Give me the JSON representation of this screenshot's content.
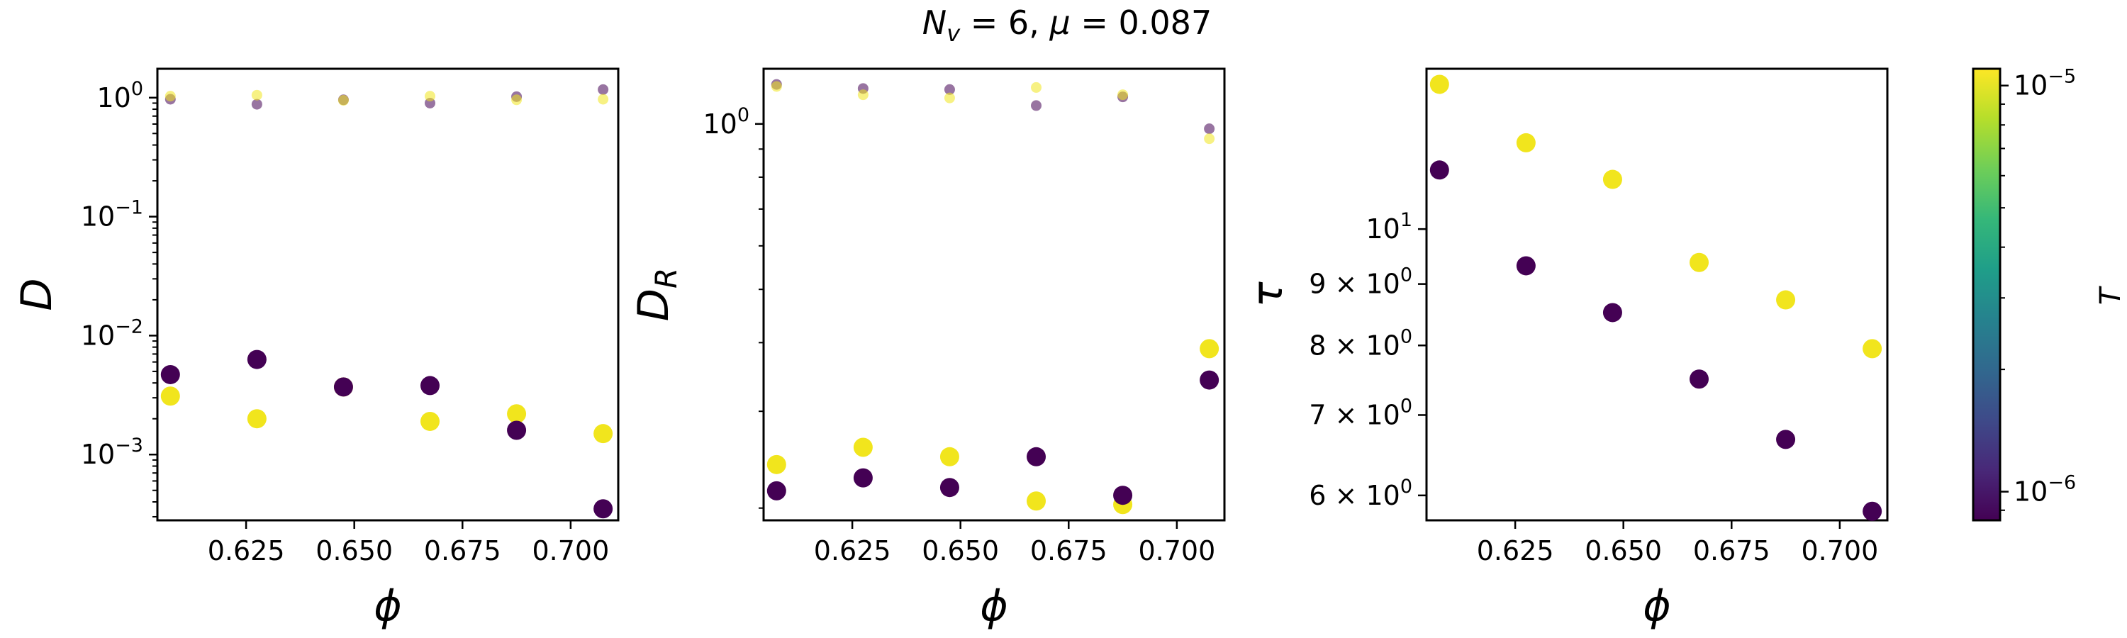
{
  "suptitle": "N_v = 6, μ = 0.087",
  "suptitle_parts": {
    "n": "N",
    "nsub": "v",
    "nval": " = 6, ",
    "mu": "μ",
    "muval": " = 0.087"
  },
  "colorbar": {
    "label": "T",
    "scale": "log",
    "range": [
      8.5e-07,
      1.1e-05
    ],
    "ticks": [
      {
        "value": 1e-06,
        "base": "10",
        "exp": "−6"
      },
      {
        "value": 1e-05,
        "base": "10",
        "exp": "−5"
      }
    ],
    "colormap": [
      "#440154",
      "#482878",
      "#3e4a89",
      "#31688e",
      "#26828e",
      "#1f9e89",
      "#35b779",
      "#6ece58",
      "#b5de2b",
      "#fde725"
    ],
    "low_color": "#440154",
    "high_color": "#f1e51d"
  },
  "chart_data": [
    {
      "type": "scatter",
      "name": "D",
      "xlabel": "ϕ",
      "ylabel": "D",
      "yscale": "log",
      "xlim": [
        0.6045,
        0.711
      ],
      "ylim": [
        0.00028,
        1.75
      ],
      "xticks": [
        "0.625",
        "0.650",
        "0.675",
        "0.700"
      ],
      "yticks": [
        {
          "value": 1,
          "base": "10",
          "exp": "0"
        },
        {
          "value": 0.1,
          "base": "10",
          "exp": "−1"
        },
        {
          "value": 0.01,
          "base": "10",
          "exp": "−2"
        },
        {
          "value": 0.001,
          "base": "10",
          "exp": "−3"
        }
      ],
      "series": [
        {
          "T": "high",
          "style": "large",
          "x": [
            0.6075,
            0.6275,
            0.6475,
            0.6675,
            0.6875,
            0.7075
          ],
          "y": [
            0.0031,
            0.002,
            0.0037,
            0.0019,
            0.0022,
            0.0015
          ]
        },
        {
          "T": "low",
          "style": "large",
          "x": [
            0.6075,
            0.6275,
            0.6475,
            0.6675,
            0.6875,
            0.7075
          ],
          "y": [
            0.0047,
            0.0063,
            0.0037,
            0.0038,
            0.0016,
            0.00035
          ]
        },
        {
          "T": "low",
          "style": "small",
          "x": [
            0.6075,
            0.6275,
            0.6475,
            0.6675,
            0.6875,
            0.7075
          ],
          "y": [
            0.97,
            0.88,
            0.96,
            0.9,
            1.02,
            1.17
          ]
        },
        {
          "T": "high",
          "style": "small",
          "x": [
            0.6075,
            0.6275,
            0.6475,
            0.6675,
            0.6875,
            0.7075
          ],
          "y": [
            1.03,
            1.05,
            0.95,
            1.03,
            0.96,
            0.97
          ]
        }
      ]
    },
    {
      "type": "scatter",
      "name": "D_R",
      "xlabel": "ϕ",
      "ylabel": "D_R",
      "yscale": "log",
      "xlim": [
        0.6045,
        0.711
      ],
      "ylim": [
        0.19,
        1.26
      ],
      "xticks": [
        "0.625",
        "0.650",
        "0.675",
        "0.700"
      ],
      "yticks": [
        {
          "value": 1,
          "base": "10",
          "exp": "0"
        }
      ],
      "minor_yticks": [
        0.2,
        0.3,
        0.4,
        0.5,
        0.6,
        0.7,
        0.8,
        0.9
      ],
      "series": [
        {
          "T": "high",
          "style": "large",
          "x": [
            0.6075,
            0.6275,
            0.6475,
            0.6675,
            0.6875,
            0.7075
          ],
          "y": [
            0.24,
            0.258,
            0.248,
            0.206,
            0.203,
            0.39
          ]
        },
        {
          "T": "low",
          "style": "large",
          "x": [
            0.6075,
            0.6275,
            0.6475,
            0.6675,
            0.6875,
            0.7075
          ],
          "y": [
            0.215,
            0.227,
            0.218,
            0.248,
            0.211,
            0.342
          ]
        },
        {
          "T": "low",
          "style": "small",
          "x": [
            0.6075,
            0.6275,
            0.6475,
            0.6675,
            0.6875,
            0.7075
          ],
          "y": [
            1.18,
            1.16,
            1.155,
            1.08,
            1.12,
            0.98
          ]
        },
        {
          "T": "high",
          "style": "small",
          "x": [
            0.6075,
            0.6275,
            0.6475,
            0.6675,
            0.6875,
            0.7075
          ],
          "y": [
            1.17,
            1.13,
            1.115,
            1.165,
            1.13,
            0.94
          ]
        }
      ]
    },
    {
      "type": "scatter",
      "name": "tau",
      "xlabel": "ϕ",
      "ylabel": "τ",
      "yscale": "log",
      "xlim": [
        0.6045,
        0.711
      ],
      "ylim": [
        5.72,
        13.6
      ],
      "xticks": [
        "0.625",
        "0.650",
        "0.675",
        "0.700"
      ],
      "yticks": [
        {
          "value": 10,
          "base": "10",
          "exp": "1",
          "mant": ""
        },
        {
          "value": 9,
          "base": "10",
          "exp": "0",
          "mant": "9 × "
        },
        {
          "value": 8,
          "base": "10",
          "exp": "0",
          "mant": "8 × "
        },
        {
          "value": 7,
          "base": "10",
          "exp": "0",
          "mant": "7 × "
        },
        {
          "value": 6,
          "base": "10",
          "exp": "0",
          "mant": "6 × "
        }
      ],
      "series": [
        {
          "T": "high",
          "style": "large",
          "x": [
            0.6075,
            0.6275,
            0.6475,
            0.6675,
            0.6875,
            0.7075
          ],
          "y": [
            13.2,
            11.8,
            11.0,
            9.38,
            8.73,
            7.95
          ]
        },
        {
          "T": "low",
          "style": "large",
          "x": [
            0.6075,
            0.6275,
            0.6475,
            0.6675,
            0.6875,
            0.7075
          ],
          "y": [
            11.2,
            9.32,
            8.52,
            7.5,
            6.68,
            5.82
          ]
        }
      ]
    }
  ]
}
